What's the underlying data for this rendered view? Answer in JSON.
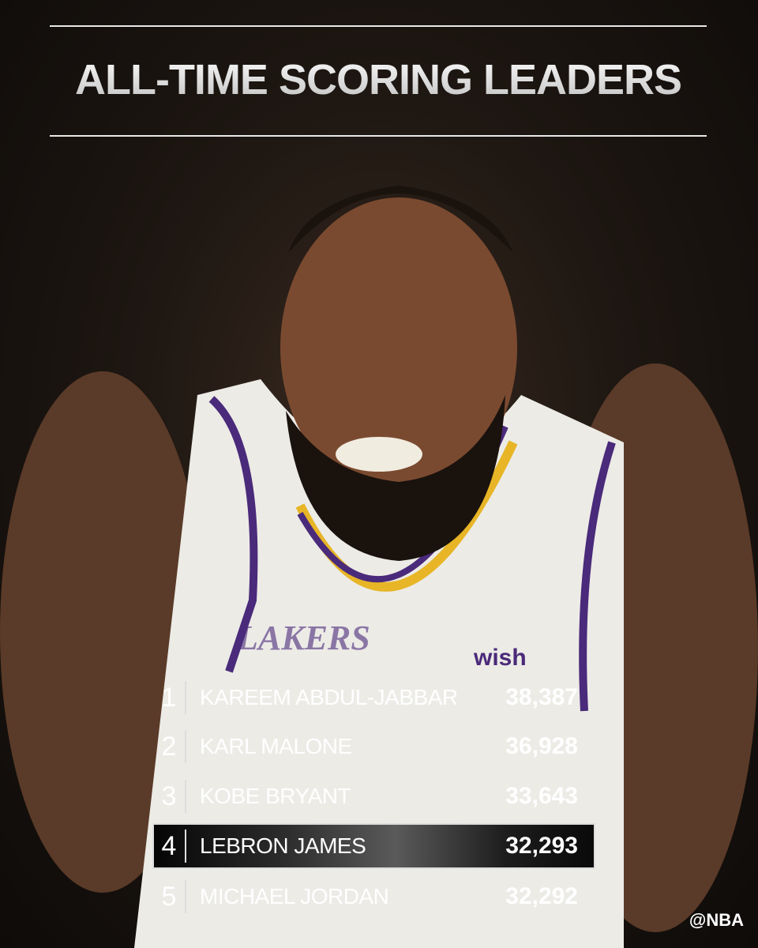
{
  "title": "ALL-TIME SCORING LEADERS",
  "leaders": [
    {
      "rank": "1",
      "name": "KAREEM ABDUL-JABBAR",
      "points": "38,387",
      "highlighted": false
    },
    {
      "rank": "2",
      "name": "KARL MALONE",
      "points": "36,928",
      "highlighted": false
    },
    {
      "rank": "3",
      "name": "KOBE BRYANT",
      "points": "33,643",
      "highlighted": false
    },
    {
      "rank": "4",
      "name": "LEBRON JAMES",
      "points": "32,293",
      "highlighted": true
    },
    {
      "rank": "5",
      "name": "MICHAEL JORDAN",
      "points": "32,292",
      "highlighted": false
    }
  ],
  "handle": "@NBA",
  "jersey_text": [
    "wish",
    "LAKERS"
  ],
  "colors": {
    "jersey": "#ecebe6",
    "purple": "#4a2a7a",
    "gold": "#e7b526",
    "background": "#120f0d"
  }
}
